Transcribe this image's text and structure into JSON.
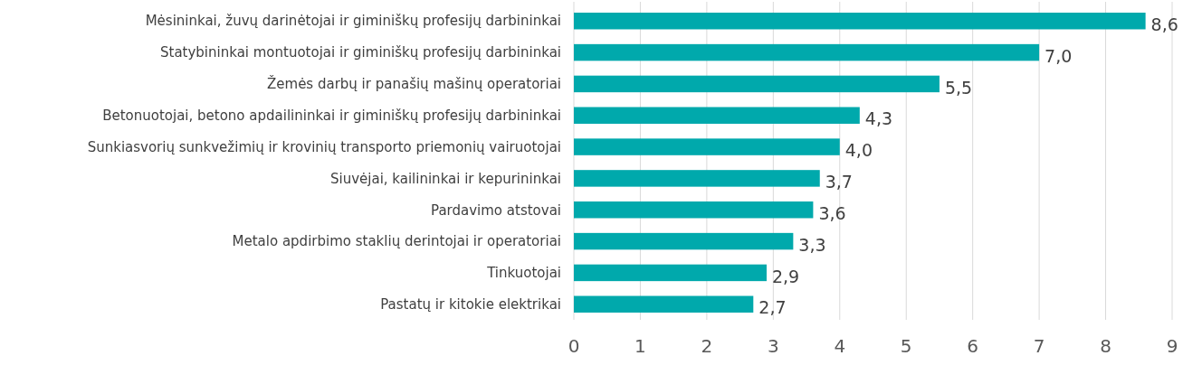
{
  "chart_data": {
    "type": "bar",
    "orientation": "horizontal",
    "categories": [
      "Mėsininkai, žuvų darinėtojai ir giminiškų profesijų darbininkai",
      "Statybininkai montuotojai ir giminiškų profesijų darbininkai",
      "Žemės darbų ir panašių mašinų operatoriai",
      "Betonuotojai, betono apdailininkai ir giminiškų profesijų darbininkai",
      "Sunkiasvorių sunkvežimių ir krovinių transporto priemonių vairuotojai",
      "Siuvėjai, kailininkai ir kepurininkai",
      "Pardavimo atstovai",
      "Metalo apdirbimo staklių derintojai ir operatoriai",
      "Tinkuotojai",
      "Pastatų ir kitokie elektrikai"
    ],
    "values": [
      8.6,
      7.0,
      5.5,
      4.3,
      4.0,
      3.7,
      3.6,
      3.3,
      2.9,
      2.7
    ],
    "value_labels": [
      "8,6",
      "7,0",
      "5,5",
      "4,3",
      "4,0",
      "3,7",
      "3,6",
      "3,3",
      "2,9",
      "2,7"
    ],
    "color": "#00a9ac",
    "xlim": [
      0,
      9
    ],
    "xticks": [
      0,
      1,
      2,
      3,
      4,
      5,
      6,
      7,
      8,
      9
    ],
    "grid": "x"
  }
}
